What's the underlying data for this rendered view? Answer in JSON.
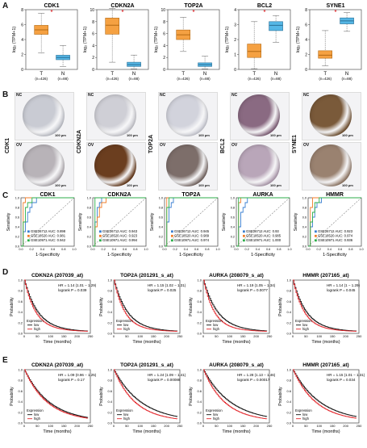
{
  "panels": {
    "A": "A",
    "B": "B",
    "C": "C",
    "D": "D",
    "E": "E"
  },
  "colors": {
    "tumor": "#f5a142",
    "tumor_edge": "#b46a14",
    "normal": "#55b7e6",
    "normal_edge": "#2a6f96",
    "star": "#e0292d",
    "roc1": "#3a7fd0",
    "roc2": "#f07e2a",
    "roc3": "#2cae4a",
    "km_low": "#111111",
    "km_high": "#e3262b",
    "he_light": "#c9c9cf",
    "he_dark": "#6b4a2e"
  },
  "boxplots": {
    "ylabel": "log₂ (TPM+1)",
    "star": "*",
    "groups": [
      "T",
      "N"
    ],
    "counts": [
      "(n=426)",
      "(n=88)"
    ],
    "charts": [
      {
        "title": "CDK1",
        "ylim": [
          0,
          8
        ],
        "ticks": [
          "0",
          "2",
          "4",
          "6",
          "8"
        ],
        "T": {
          "min": 2.2,
          "q1": 4.7,
          "med": 5.3,
          "q3": 5.9,
          "max": 7.5
        },
        "N": {
          "min": 0.4,
          "q1": 1.3,
          "med": 1.6,
          "q3": 1.9,
          "max": 3.2
        }
      },
      {
        "title": "CDKN2A",
        "ylim": [
          0,
          10
        ],
        "ticks": [
          "0",
          "2",
          "4",
          "6",
          "8",
          "10"
        ],
        "T": {
          "min": 1.2,
          "q1": 5.9,
          "med": 7.4,
          "q3": 8.6,
          "max": 10.2
        },
        "N": {
          "min": 0.1,
          "q1": 0.5,
          "med": 0.8,
          "q3": 1.2,
          "max": 2.4
        }
      },
      {
        "title": "TOP2A",
        "ylim": [
          0,
          10
        ],
        "ticks": [
          "0",
          "2",
          "4",
          "6",
          "8",
          "10"
        ],
        "T": {
          "min": 3.0,
          "q1": 5.0,
          "med": 5.8,
          "q3": 6.6,
          "max": 8.7
        },
        "N": {
          "min": 0.1,
          "q1": 0.5,
          "med": 0.8,
          "q3": 1.1,
          "max": 2.2
        }
      },
      {
        "title": "BCL2",
        "ylim": [
          0,
          4
        ],
        "ticks": [
          "0",
          "1",
          "2",
          "3",
          "4"
        ],
        "T": {
          "min": 0.05,
          "q1": 0.8,
          "med": 1.2,
          "q3": 1.7,
          "max": 3.2
        },
        "N": {
          "min": 1.8,
          "q1": 2.6,
          "med": 2.95,
          "q3": 3.2,
          "max": 3.6
        }
      },
      {
        "title": "SYNE1",
        "ylim": [
          0,
          8
        ],
        "ticks": [
          "0",
          "2",
          "4",
          "6",
          "8"
        ],
        "T": {
          "min": 0.5,
          "q1": 1.5,
          "med": 1.9,
          "q3": 2.5,
          "max": 5.2
        },
        "N": {
          "min": 5.1,
          "q1": 6.1,
          "med": 6.5,
          "q3": 6.9,
          "max": 7.6
        }
      }
    ]
  },
  "ihc": {
    "nc": "NC",
    "ov": "OV",
    "scale": "100 μm",
    "genes": [
      "CDK1",
      "CDKN2A",
      "TOP2A",
      "BCL2",
      "SYNE1"
    ],
    "nc_tones": [
      "#c9cbd3",
      "#cfcfd6",
      "#d2d3dc",
      "#8a6a82",
      "#7a5a3a"
    ],
    "ov_tones": [
      "#b8b3b8",
      "#6b3e1f",
      "#7d6e6a",
      "#b9a6b9",
      "#9a8270"
    ]
  },
  "roc": {
    "xlabel": "1-Specificity",
    "ylabel": "Sensitivity",
    "ticks": [
      "0.0",
      "0.2",
      "0.4",
      "0.6",
      "0.8",
      "1.0"
    ],
    "charts": [
      {
        "title": "CDK1",
        "legend": [
          "GSE26712 AUC: 0.898",
          "GSE18520 AUC: 0.981",
          "GSE10971 AUC: 0.942"
        ],
        "auc": [
          0.898,
          0.981,
          0.942
        ]
      },
      {
        "title": "CDKN2A",
        "legend": [
          "GSE26712 AUC: 0.943",
          "GSE18520 AUC: 0.923",
          "GSE10971 AUC: 0.994"
        ],
        "auc": [
          0.943,
          0.923,
          0.994
        ]
      },
      {
        "title": "TOP2A",
        "legend": [
          "GSE26712 AUC: 0.945",
          "GSE18520 AUC: 0.989",
          "GSE10971 AUC: 0.974"
        ],
        "auc": [
          0.945,
          0.989,
          0.974
        ]
      },
      {
        "title": "AURKA",
        "legend": [
          "GSE26712 AUC: 0.93",
          "GSE18520 AUC: 0.985",
          "GSE10971 AUC: 1.000"
        ],
        "auc": [
          0.93,
          0.985,
          1.0
        ]
      },
      {
        "title": "HMMR",
        "legend": [
          "GSE26712 AUC: 0.923",
          "GSE18520 AUC: 0.974",
          "GSE10971 AUC: 0.936"
        ],
        "auc": [
          0.923,
          0.974,
          0.936
        ]
      }
    ]
  },
  "km": {
    "xlabel": "Time (months)",
    "ylabel": "Probability",
    "yticks": [
      "0.0",
      "0.2",
      "0.4",
      "0.6",
      "0.8",
      "1.0"
    ],
    "xticks": [
      "0",
      "50",
      "100",
      "150",
      "200",
      "250"
    ],
    "legend_title": "Expression",
    "legend": [
      "low",
      "high"
    ],
    "D": [
      {
        "title": "CDKN2A (207039_at)",
        "hr": "HR = 1.14 (1.01 − 1.29)",
        "p": "logrank P = 0.039",
        "low_rate": 0.02,
        "high_rate": 0.024
      },
      {
        "title": "TOP2A (201291_s_at)",
        "hr": "HR = 1.15 (1.02 − 1.31)",
        "p": "logrank P = 0.025",
        "low_rate": 0.02,
        "high_rate": 0.025
      },
      {
        "title": "AURKA (208079_s_at)",
        "hr": "HR = 1.19 (1.05 − 1.34)",
        "p": "logrank P = 0.0077",
        "low_rate": 0.019,
        "high_rate": 0.025
      },
      {
        "title": "HMMR (207165_at)",
        "hr": "HR = 1.14 (1 − 1.29)",
        "p": "logrank P = 0.045",
        "low_rate": 0.02,
        "high_rate": 0.024
      }
    ],
    "E": [
      {
        "title": "CDKN2A (207039_at)",
        "hr": "HR = 1.09 (0.96 − 1.25)",
        "p": "logrank P = 0.17",
        "low_rate": 0.011,
        "high_rate": 0.012
      },
      {
        "title": "TOP2A (201291_s_at)",
        "hr": "HR = 1.24 (1.09 − 1.41)",
        "p": "logrank P = 0.00088",
        "low_rate": 0.01,
        "high_rate": 0.013
      },
      {
        "title": "AURKA (208079_s_at)",
        "hr": "HR = 1.28 (1.13 − 1.46)",
        "p": "logrank P = 0.00017",
        "low_rate": 0.01,
        "high_rate": 0.013
      },
      {
        "title": "HMMR (207165_at)",
        "hr": "HR = 1.15 (1.01 − 1.31)",
        "p": "logrank P = 0.034",
        "low_rate": 0.01,
        "high_rate": 0.012
      }
    ]
  }
}
